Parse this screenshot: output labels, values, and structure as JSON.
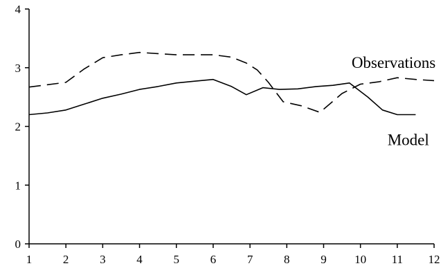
{
  "chart_data": {
    "type": "line",
    "title": "",
    "xlabel": "",
    "ylabel": "",
    "xlim": [
      1,
      12
    ],
    "ylim": [
      0,
      4
    ],
    "xticks": [
      "1",
      "2",
      "3",
      "4",
      "5",
      "6",
      "7",
      "8",
      "9",
      "10",
      "11",
      "12"
    ],
    "yticks": [
      "0",
      "1",
      "2",
      "3",
      "4"
    ],
    "grid": false,
    "legend": "none (series labelled directly on the plot)",
    "series": [
      {
        "name": "Observations",
        "style": "dashed",
        "color": "#000000",
        "label_near_x": 10.9,
        "x": [
          1.0,
          1.5,
          2.0,
          2.5,
          3.0,
          3.5,
          4.0,
          4.5,
          5.0,
          5.5,
          6.0,
          6.5,
          6.9,
          7.2,
          7.5,
          7.9,
          8.4,
          8.9,
          9.5,
          10.0,
          10.5,
          11.0,
          11.5,
          12.0
        ],
        "y": [
          2.67,
          2.71,
          2.75,
          2.98,
          3.17,
          3.22,
          3.26,
          3.24,
          3.22,
          3.22,
          3.22,
          3.18,
          3.08,
          2.96,
          2.75,
          2.42,
          2.35,
          2.24,
          2.56,
          2.72,
          2.76,
          2.83,
          2.8,
          2.78
        ]
      },
      {
        "name": "Model",
        "style": "solid",
        "color": "#000000",
        "label_near_x": 11.3,
        "x": [
          1.0,
          1.5,
          2.0,
          2.5,
          3.0,
          3.5,
          4.0,
          4.5,
          5.0,
          5.5,
          6.0,
          6.5,
          6.9,
          7.35,
          7.8,
          8.3,
          8.8,
          9.25,
          9.7,
          10.2,
          10.6,
          11.0,
          11.5
        ],
        "y": [
          2.2,
          2.23,
          2.28,
          2.38,
          2.48,
          2.55,
          2.63,
          2.68,
          2.74,
          2.77,
          2.8,
          2.68,
          2.54,
          2.66,
          2.63,
          2.64,
          2.68,
          2.7,
          2.74,
          2.5,
          2.28,
          2.2,
          2.2
        ]
      }
    ]
  }
}
